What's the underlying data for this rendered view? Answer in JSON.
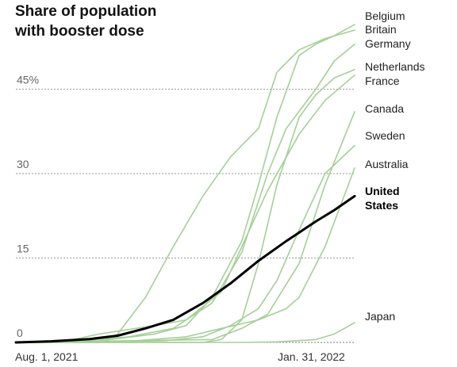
{
  "chart_data": {
    "type": "line",
    "title": [
      "Share of population",
      "with booster dose"
    ],
    "x_tick_labels": [
      "Aug. 1, 2021",
      "Jan. 31, 2022"
    ],
    "x_domain": [
      "2021-08-01",
      "2022-01-31"
    ],
    "y_ticks": [
      {
        "value": 0,
        "label": "0"
      },
      {
        "value": 15,
        "label": "15"
      },
      {
        "value": 30,
        "label": "30"
      },
      {
        "value": 45,
        "label": "45%"
      }
    ],
    "ylim": [
      0,
      57
    ],
    "grid": "horizontal dotted",
    "highlight_color": "#000000",
    "other_color": "#a5cf98",
    "series": [
      {
        "name": "Belgium",
        "highlight": false,
        "points": [
          [
            "2021-08-01",
            0
          ],
          [
            "2021-09-15",
            0.3
          ],
          [
            "2021-10-15",
            1.5
          ],
          [
            "2021-11-01",
            3
          ],
          [
            "2021-11-15",
            8
          ],
          [
            "2021-12-01",
            18
          ],
          [
            "2021-12-10",
            28
          ],
          [
            "2021-12-20",
            40
          ],
          [
            "2022-01-01",
            51
          ],
          [
            "2022-01-10",
            53
          ],
          [
            "2022-01-20",
            54.5
          ],
          [
            "2022-01-31",
            56.5
          ]
        ]
      },
      {
        "name": "Britain",
        "highlight": false,
        "points": [
          [
            "2021-08-01",
            0
          ],
          [
            "2021-09-16",
            0
          ],
          [
            "2021-09-25",
            1.5
          ],
          [
            "2021-10-10",
            8
          ],
          [
            "2021-10-25",
            17
          ],
          [
            "2021-11-10",
            26
          ],
          [
            "2021-11-25",
            33
          ],
          [
            "2021-12-10",
            38
          ],
          [
            "2021-12-15",
            43
          ],
          [
            "2021-12-20",
            48
          ],
          [
            "2022-01-01",
            52
          ],
          [
            "2022-01-15",
            54
          ],
          [
            "2022-01-31",
            55.5
          ]
        ]
      },
      {
        "name": "Germany",
        "highlight": false,
        "points": [
          [
            "2021-08-01",
            0
          ],
          [
            "2021-09-01",
            0.2
          ],
          [
            "2021-10-01",
            1
          ],
          [
            "2021-10-25",
            2.5
          ],
          [
            "2021-11-15",
            7
          ],
          [
            "2021-12-01",
            16
          ],
          [
            "2021-12-15",
            30
          ],
          [
            "2021-12-25",
            38
          ],
          [
            "2022-01-10",
            45
          ],
          [
            "2022-01-20",
            50
          ],
          [
            "2022-01-31",
            53
          ]
        ]
      },
      {
        "name": "Netherlands",
        "highlight": false,
        "points": [
          [
            "2021-08-01",
            0
          ],
          [
            "2021-11-10",
            0
          ],
          [
            "2021-11-20",
            0.5
          ],
          [
            "2021-12-01",
            4
          ],
          [
            "2021-12-10",
            14
          ],
          [
            "2021-12-20",
            28
          ],
          [
            "2022-01-01",
            40
          ],
          [
            "2022-01-10",
            44
          ],
          [
            "2022-01-20",
            47
          ],
          [
            "2022-01-31",
            48.5
          ]
        ]
      },
      {
        "name": "France",
        "highlight": false,
        "points": [
          [
            "2021-08-01",
            0
          ],
          [
            "2021-09-01",
            0.5
          ],
          [
            "2021-09-15",
            1.5
          ],
          [
            "2021-10-15",
            3
          ],
          [
            "2021-11-01",
            4
          ],
          [
            "2021-11-20",
            9
          ],
          [
            "2021-12-01",
            17
          ],
          [
            "2021-12-15",
            27
          ],
          [
            "2022-01-01",
            37
          ],
          [
            "2022-01-15",
            43
          ],
          [
            "2022-01-31",
            47.5
          ]
        ]
      },
      {
        "name": "Canada",
        "highlight": false,
        "points": [
          [
            "2021-08-01",
            0
          ],
          [
            "2021-11-15",
            0.5
          ],
          [
            "2021-12-01",
            2.5
          ],
          [
            "2021-12-15",
            5
          ],
          [
            "2022-01-01",
            14
          ],
          [
            "2022-01-15",
            28
          ],
          [
            "2022-01-31",
            41
          ]
        ]
      },
      {
        "name": "Sweden",
        "highlight": false,
        "points": [
          [
            "2021-08-01",
            0
          ],
          [
            "2021-10-20",
            0.3
          ],
          [
            "2021-11-10",
            1
          ],
          [
            "2021-11-25",
            3
          ],
          [
            "2021-12-10",
            6
          ],
          [
            "2021-12-20",
            11
          ],
          [
            "2022-01-01",
            20
          ],
          [
            "2022-01-15",
            30
          ],
          [
            "2022-01-31",
            35
          ]
        ]
      },
      {
        "name": "Australia",
        "highlight": false,
        "points": [
          [
            "2021-08-01",
            0
          ],
          [
            "2021-10-01",
            0.2
          ],
          [
            "2021-11-01",
            1
          ],
          [
            "2021-11-20",
            2.5
          ],
          [
            "2021-12-10",
            4
          ],
          [
            "2021-12-25",
            6
          ],
          [
            "2022-01-01",
            8
          ],
          [
            "2022-01-15",
            17
          ],
          [
            "2022-01-31",
            31
          ]
        ]
      },
      {
        "name": "United States",
        "highlight": true,
        "points": [
          [
            "2021-08-01",
            0
          ],
          [
            "2021-08-20",
            0.2
          ],
          [
            "2021-09-10",
            0.6
          ],
          [
            "2021-09-25",
            1.2
          ],
          [
            "2021-10-10",
            2.5
          ],
          [
            "2021-10-25",
            4
          ],
          [
            "2021-11-10",
            7
          ],
          [
            "2021-11-25",
            10.5
          ],
          [
            "2021-12-10",
            14.5
          ],
          [
            "2021-12-25",
            18
          ],
          [
            "2022-01-10",
            21.5
          ],
          [
            "2022-01-20",
            23.5
          ],
          [
            "2022-01-31",
            26
          ]
        ]
      },
      {
        "name": "Japan",
        "highlight": false,
        "points": [
          [
            "2021-08-01",
            0
          ],
          [
            "2021-12-01",
            0
          ],
          [
            "2021-12-20",
            0.1
          ],
          [
            "2022-01-10",
            0.5
          ],
          [
            "2022-01-20",
            1.5
          ],
          [
            "2022-01-31",
            3.5
          ]
        ]
      }
    ]
  }
}
